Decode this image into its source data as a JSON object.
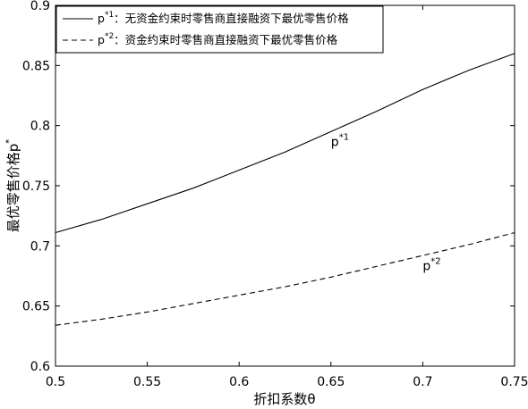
{
  "chart_data": {
    "type": "line",
    "xlabel": "折扣系数θ",
    "ylabel": "最优零售价格p",
    "ylabel_sup": "*",
    "xlim": [
      0.5,
      0.75
    ],
    "ylim": [
      0.6,
      0.9
    ],
    "x_ticks": [
      "0.5",
      "0.55",
      "0.6",
      "0.65",
      "0.7",
      "0.75"
    ],
    "y_ticks": [
      "0.6",
      "0.65",
      "0.7",
      "0.75",
      "0.8",
      "0.85",
      "0.9"
    ],
    "x_tick_values": [
      0.5,
      0.55,
      0.6,
      0.65,
      0.7,
      0.75
    ],
    "y_tick_values": [
      0.6,
      0.65,
      0.7,
      0.75,
      0.8,
      0.85,
      0.9
    ],
    "grid": false,
    "legend_position": "top-left",
    "x": [
      0.5,
      0.525,
      0.55,
      0.575,
      0.6,
      0.625,
      0.65,
      0.675,
      0.7,
      0.725,
      0.75
    ],
    "series": [
      {
        "name_base": "p",
        "name_sup": "*1",
        "name_rest": "：无资金约束时零售商直接融资下最优零售价格",
        "style": "solid",
        "color": "#000000",
        "values": [
          0.711,
          0.722,
          0.735,
          0.748,
          0.763,
          0.778,
          0.795,
          0.812,
          0.83,
          0.846,
          0.86
        ]
      },
      {
        "name_base": "p",
        "name_sup": "*2",
        "name_rest": "：资金约束时零售商直接融资下最优零售价格",
        "style": "dashed",
        "color": "#000000",
        "values": [
          0.634,
          0.639,
          0.645,
          0.652,
          0.659,
          0.666,
          0.674,
          0.683,
          0.692,
          0.701,
          0.711
        ]
      }
    ],
    "annotations": [
      {
        "base": "p",
        "sup": "*1",
        "x": 0.65,
        "y": 0.783
      },
      {
        "base": "p",
        "sup": "*2",
        "x": 0.7,
        "y": 0.68
      }
    ]
  }
}
